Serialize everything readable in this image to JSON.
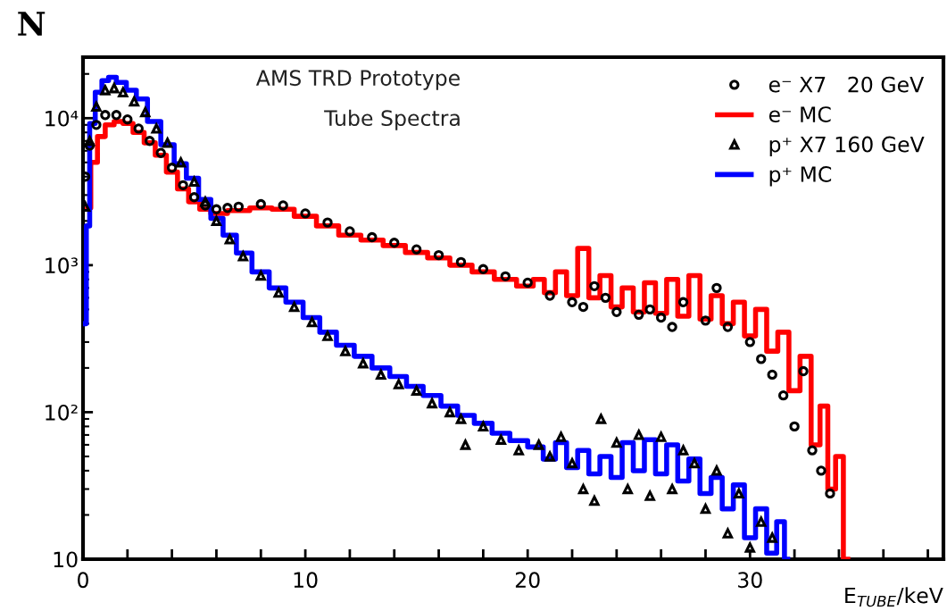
{
  "chart_data": {
    "type": "step",
    "ylabel": "N",
    "xlabel": "E$_{TUBE}$/keV",
    "log": "y",
    "legend": "top right",
    "annotations": [
      "AMS TRD Prototype",
      "Tube Spectra"
    ],
    "xlim": [
      0,
      38.7
    ],
    "ylim": [
      10,
      26000
    ],
    "xticks": [
      0,
      {
        "value": 2,
        "label": null
      },
      {
        "value": 4,
        "label": null
      },
      {
        "value": 6,
        "label": null
      },
      {
        "value": 8,
        "label": null
      },
      10,
      {
        "value": 12,
        "label": null
      },
      {
        "value": 14,
        "label": null
      },
      {
        "value": 16,
        "label": null
      },
      {
        "value": 18,
        "label": null
      },
      20,
      {
        "value": 22,
        "label": null
      },
      {
        "value": 24,
        "label": null
      },
      {
        "value": 26,
        "label": null
      },
      {
        "value": 28,
        "label": null
      },
      30,
      {
        "value": 32,
        "label": null
      },
      {
        "value": 34,
        "label": null
      },
      {
        "value": 36,
        "label": null
      },
      {
        "value": 38,
        "label": null
      }
    ],
    "yticks": [
      10,
      {
        "value": 100,
        "label": "10²"
      },
      {
        "value": 1000,
        "label": "10³"
      },
      {
        "value": 10000,
        "label": "10⁴"
      }
    ],
    "series": [
      {
        "name": "e⁻ X7   20 GeV",
        "type": "scatter",
        "marker": "circle",
        "color": "#000000",
        "x": [
          0.1,
          0.3,
          0.6,
          1.0,
          1.5,
          2.0,
          2.5,
          3.0,
          3.5,
          4.0,
          4.5,
          5.0,
          5.5,
          6.0,
          6.5,
          7.0,
          8.0,
          9.0,
          10.0,
          11.0,
          12.0,
          13.0,
          14.0,
          15.0,
          16.0,
          17.0,
          18.0,
          19.0,
          20.0,
          21.0,
          22.0,
          22.5,
          23.0,
          23.5,
          24.0,
          25.0,
          25.5,
          26.0,
          26.5,
          27.0,
          28.0,
          28.5,
          29.0,
          30.0,
          30.5,
          31.0,
          31.5,
          32.0,
          32.4,
          32.8,
          33.2,
          33.6
        ],
        "values": [
          4000,
          6500,
          9000,
          10500,
          10500,
          9800,
          8500,
          7000,
          5800,
          4600,
          3500,
          2900,
          2550,
          2400,
          2450,
          2500,
          2600,
          2550,
          2250,
          1950,
          1700,
          1550,
          1420,
          1280,
          1170,
          1050,
          940,
          840,
          760,
          620,
          560,
          520,
          720,
          600,
          480,
          460,
          500,
          440,
          380,
          560,
          420,
          700,
          380,
          300,
          230,
          180,
          130,
          80,
          190,
          55,
          40,
          28
        ]
      },
      {
        "name": "e⁻ MC",
        "color": "#ff0000",
        "x": [
          0.2,
          0.5,
          0.8,
          1.2,
          1.6,
          2.0,
          2.5,
          3.0,
          3.5,
          4.0,
          4.5,
          5.0,
          5.5,
          6.0,
          7.0,
          8.0,
          9.0,
          10.0,
          11.0,
          12.0,
          13.0,
          14.0,
          15.0,
          16.0,
          17.0,
          18.0,
          19.0,
          20.0,
          20.5,
          21.0,
          21.5,
          22.0,
          22.5,
          23.0,
          23.5,
          24.0,
          24.5,
          25.0,
          25.5,
          26.0,
          26.5,
          27.0,
          27.5,
          28.0,
          28.5,
          29.0,
          29.5,
          30.0,
          30.5,
          31.0,
          31.5,
          32.0,
          32.5,
          33.0,
          33.3,
          33.7,
          34.0,
          34.4
        ],
        "values": [
          2450,
          5000,
          7500,
          9000,
          9500,
          9200,
          8000,
          6800,
          5600,
          4300,
          3300,
          2700,
          2400,
          2250,
          2350,
          2450,
          2400,
          2150,
          1850,
          1600,
          1480,
          1360,
          1220,
          1120,
          1000,
          900,
          800,
          720,
          800,
          650,
          900,
          620,
          1300,
          600,
          850,
          520,
          700,
          480,
          760,
          470,
          800,
          450,
          850,
          430,
          620,
          400,
          560,
          330,
          500,
          260,
          350,
          140,
          240,
          60,
          110,
          30,
          50,
          10
        ]
      },
      {
        "name": "p⁺ X7 160 GeV",
        "type": "scatter",
        "marker": "triangle",
        "color": "#000000",
        "x": [
          0.1,
          0.3,
          0.6,
          1.0,
          1.4,
          1.8,
          2.3,
          2.8,
          3.3,
          3.8,
          4.4,
          5.0,
          5.5,
          6.0,
          6.6,
          7.2,
          8.0,
          8.8,
          9.5,
          10.3,
          11.0,
          11.8,
          12.6,
          13.4,
          14.2,
          15.0,
          15.7,
          16.5,
          17.0,
          17.2,
          18.0,
          18.8,
          19.6,
          20.5,
          21.0,
          21.5,
          22.0,
          22.5,
          23.0,
          23.3,
          24.0,
          24.5,
          25.0,
          25.5,
          26.0,
          26.5,
          27.0,
          27.5,
          28.0,
          28.5,
          29.0,
          29.5,
          30.0,
          30.5,
          31.0
        ],
        "values": [
          2500,
          7000,
          12000,
          15500,
          16000,
          15000,
          13000,
          11000,
          8500,
          6800,
          5000,
          3700,
          2700,
          2000,
          1500,
          1150,
          850,
          650,
          520,
          410,
          330,
          260,
          215,
          180,
          155,
          140,
          115,
          100,
          90,
          60,
          80,
          65,
          55,
          60,
          50,
          68,
          45,
          30,
          25,
          90,
          62,
          30,
          70,
          27,
          68,
          30,
          55,
          45,
          22,
          40,
          15,
          28,
          12,
          18,
          14
        ]
      },
      {
        "name": "p⁺ MC",
        "color": "#0000ff",
        "x": [
          0.1,
          0.2,
          0.4,
          0.7,
          1.0,
          1.3,
          1.7,
          2.2,
          2.6,
          3.2,
          3.8,
          4.4,
          4.9,
          5.5,
          6.0,
          6.6,
          7.2,
          8.0,
          8.75,
          9.5,
          10.3,
          11.0,
          11.8,
          12.6,
          13.4,
          14.2,
          14.9,
          15.7,
          16.5,
          17.2,
          18.0,
          18.8,
          19.6,
          20.4,
          21.0,
          21.5,
          22.0,
          22.5,
          23.0,
          23.5,
          24.0,
          24.5,
          25.0,
          25.5,
          26.0,
          26.5,
          27.0,
          27.5,
          28.0,
          28.5,
          29.0,
          29.5,
          30.0,
          30.5,
          31.0,
          31.4,
          31.7
        ],
        "values": [
          400,
          1850,
          9200,
          15000,
          18000,
          19000,
          17500,
          15500,
          13500,
          9500,
          6600,
          4900,
          3900,
          2800,
          2080,
          1600,
          1210,
          900,
          700,
          560,
          440,
          350,
          285,
          240,
          200,
          175,
          150,
          130,
          110,
          95,
          84,
          72,
          64,
          58,
          48,
          62,
          42,
          55,
          38,
          50,
          36,
          62,
          40,
          65,
          38,
          60,
          34,
          48,
          28,
          36,
          22,
          32,
          14,
          22,
          11,
          18,
          10
        ]
      }
    ]
  }
}
